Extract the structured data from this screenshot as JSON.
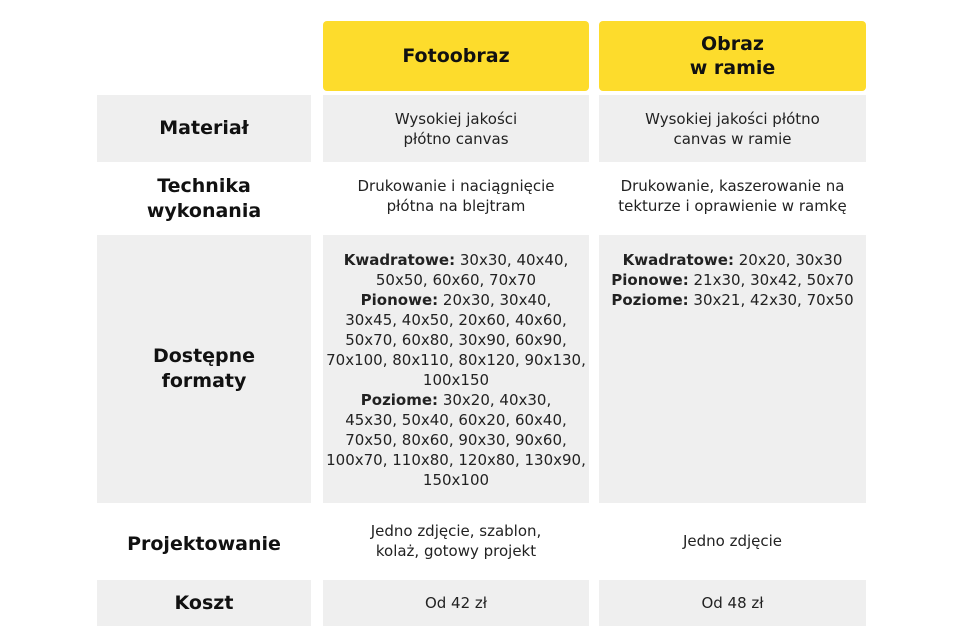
{
  "columns": [
    {
      "title_lines": [
        "Fotoobraz"
      ]
    },
    {
      "title_lines": [
        "Obraz",
        "w ramie"
      ]
    }
  ],
  "rows": {
    "material": {
      "label_lines": [
        "Materiał"
      ],
      "col1_lines": [
        "Wysokiej jakości",
        "płótno canvas"
      ],
      "col2_lines": [
        "Wysokiej jakości płótno",
        "canvas w ramie"
      ]
    },
    "technika": {
      "label_lines": [
        "Technika",
        "wykonania"
      ],
      "col1_lines": [
        "Drukowanie i naciągnięcie",
        "płótna na blejtram"
      ],
      "col2_lines": [
        "Drukowanie, kaszerowanie na",
        "tekturze i oprawienie w ramkę"
      ]
    },
    "formaty": {
      "label_lines": [
        "Dostępne",
        "formaty"
      ],
      "col1": {
        "kwadratowe_label": "Kwadratowe:",
        "kwadratowe_lines": [
          "30x30, 40x40,",
          "50x50, 60x60, 70x70"
        ],
        "pionowe_label": "Pionowe:",
        "pionowe_lines": [
          "20x30, 30x40,",
          "30x45, 40x50, 20x60, 40x60,",
          "50x70, 60x80, 30x90, 60x90,",
          "70x100, 80x110, 80x120, 90x130,",
          "100x150"
        ],
        "poziome_label": "Poziome:",
        "poziome_lines": [
          "30x20, 40x30,",
          "45x30, 50x40, 60x20, 60x40,",
          "70x50, 80x60, 90x30, 90x60,",
          "100x70, 110x80, 120x80, 130x90,",
          "150x100"
        ]
      },
      "col2": {
        "kwadratowe_label": "Kwadratowe:",
        "kwadratowe_value": "20x20, 30x30",
        "pionowe_label": "Pionowe:",
        "pionowe_value": "21x30, 30x42, 50x70",
        "poziome_label": "Poziome:",
        "poziome_value": "30x21, 42x30, 70x50"
      }
    },
    "projektowanie": {
      "label_lines": [
        "Projektowanie"
      ],
      "col1_lines": [
        "Jedno zdjęcie, szablon,",
        "kolaż, gotowy projekt"
      ],
      "col2_lines": [
        "Jedno zdjęcie"
      ]
    },
    "koszt": {
      "label_lines": [
        "Koszt"
      ],
      "col1_lines": [
        "Od 42 zł"
      ],
      "col2_lines": [
        "Od 48 zł"
      ]
    }
  }
}
